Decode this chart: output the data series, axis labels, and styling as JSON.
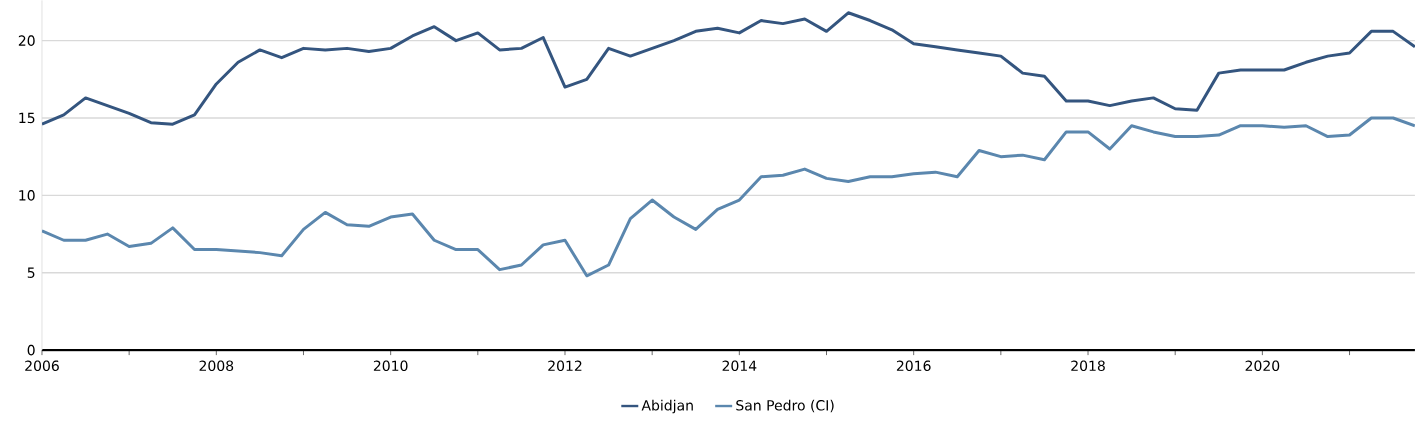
{
  "chart_data": {
    "type": "line",
    "x": [
      2006,
      2006.25,
      2006.5,
      2006.75,
      2007,
      2007.25,
      2007.5,
      2007.75,
      2008,
      2008.25,
      2008.5,
      2008.75,
      2009,
      2009.25,
      2009.5,
      2009.75,
      2010,
      2010.25,
      2010.5,
      2010.75,
      2011,
      2011.25,
      2011.5,
      2011.75,
      2012,
      2012.25,
      2012.5,
      2012.75,
      2013,
      2013.25,
      2013.5,
      2013.75,
      2014,
      2014.25,
      2014.5,
      2014.75,
      2015,
      2015.25,
      2015.5,
      2015.75,
      2016,
      2016.25,
      2016.5,
      2016.75,
      2017,
      2017.25,
      2017.5,
      2017.75,
      2018,
      2018.25,
      2018.5,
      2018.75,
      2019,
      2019.25,
      2019.5,
      2019.75,
      2020,
      2020.25,
      2020.5,
      2020.75,
      2021,
      2021.25,
      2021.5,
      2021.75
    ],
    "series": [
      {
        "name": "Abidjan",
        "color": "#34557f",
        "values": [
          14.6,
          15.2,
          16.3,
          15.8,
          15.3,
          14.7,
          14.6,
          15.2,
          17.2,
          18.6,
          19.4,
          18.9,
          19.5,
          19.4,
          19.5,
          19.3,
          19.5,
          20.3,
          20.9,
          20.0,
          20.5,
          19.4,
          19.5,
          20.2,
          17.0,
          17.5,
          19.5,
          19.0,
          19.5,
          20.0,
          20.6,
          20.8,
          20.5,
          21.3,
          21.1,
          21.4,
          20.6,
          21.8,
          21.3,
          20.7,
          19.8,
          19.6,
          19.4,
          19.2,
          19.0,
          17.9,
          17.7,
          16.1,
          16.1,
          15.8,
          16.1,
          16.3,
          15.6,
          15.5,
          17.9,
          18.1,
          18.1,
          18.1,
          18.6,
          19.0,
          19.2,
          20.6,
          20.6,
          19.6
        ]
      },
      {
        "name": "San Pedro (CI)",
        "color": "#5b87ae",
        "values": [
          7.7,
          7.1,
          7.1,
          7.5,
          6.7,
          6.9,
          7.9,
          6.5,
          6.5,
          6.4,
          6.3,
          6.1,
          7.8,
          8.9,
          8.1,
          8.0,
          8.6,
          8.8,
          7.1,
          6.5,
          6.5,
          5.2,
          5.5,
          6.8,
          7.1,
          4.8,
          5.5,
          8.5,
          9.7,
          8.6,
          7.8,
          9.1,
          9.7,
          11.2,
          11.3,
          11.7,
          11.1,
          10.9,
          11.2,
          11.2,
          11.4,
          11.5,
          11.2,
          12.9,
          12.5,
          12.6,
          12.3,
          14.1,
          14.1,
          13.0,
          14.5,
          14.1,
          13.8,
          13.8,
          13.9,
          14.5,
          14.5,
          14.4,
          14.5,
          13.8,
          13.9,
          15.0,
          15.0,
          14.5
        ]
      }
    ],
    "xlim": [
      2006,
      2021.75
    ],
    "xticks": [
      2006,
      {
        "value": 2007,
        "label": null
      },
      2008,
      {
        "value": 2009,
        "label": null
      },
      2010,
      {
        "value": 2011,
        "label": null
      },
      2012,
      {
        "value": 2013,
        "label": null
      },
      2014,
      {
        "value": 2015,
        "label": null
      },
      2016,
      {
        "value": 2017,
        "label": null
      },
      2018,
      {
        "value": 2019,
        "label": null
      },
      2020,
      {
        "value": 2021,
        "label": null
      }
    ],
    "ylim": [
      0,
      22.6
    ],
    "yticks": [
      0,
      5,
      10,
      15,
      20
    ],
    "grid": "y",
    "legend": "bottom",
    "marker": "none",
    "line_style": "solid"
  }
}
